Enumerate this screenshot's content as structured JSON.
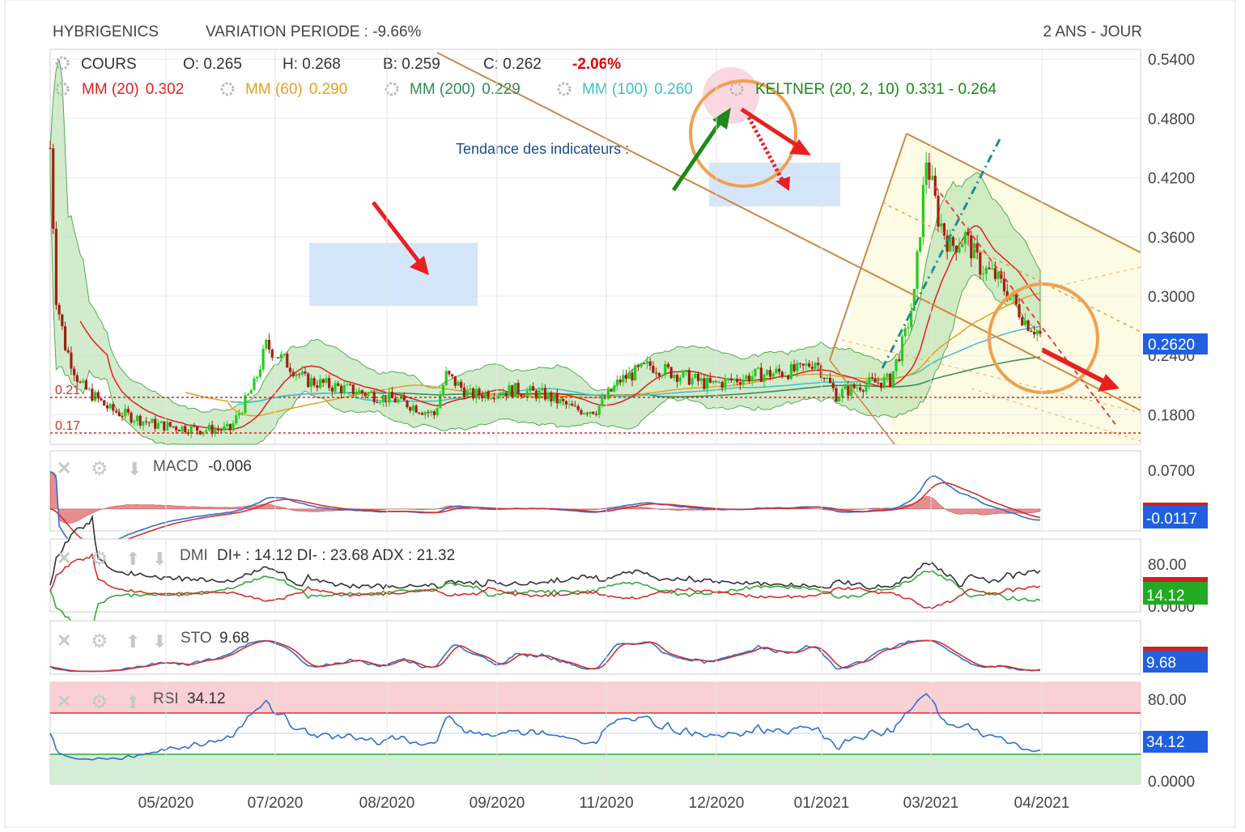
{
  "header": {
    "symbol": "HYBRIGENICS",
    "variation": "VARIATION PERIODE : -9.66%",
    "period": "2 ANS - JOUR"
  },
  "main_panel": {
    "legend_row1": [
      {
        "text": "COURS",
        "color": "#333333"
      },
      {
        "text": "O: 0.265",
        "color": "#333333"
      },
      {
        "text": "H: 0.268",
        "color": "#333333"
      },
      {
        "text": "B: 0.259",
        "color": "#333333"
      },
      {
        "text": "C: 0.262",
        "color": "#333333"
      },
      {
        "text": "-2.06%",
        "color": "#e00000"
      }
    ],
    "legend_row2": [
      {
        "name": "MM (20)",
        "value": "0.302",
        "color": "#e02020"
      },
      {
        "name": "MM (60)",
        "value": "0.290",
        "color": "#e8a020"
      },
      {
        "name": "MM (200)",
        "value": "0.229",
        "color": "#2e8b57"
      },
      {
        "name": "MM (100)",
        "value": "0.260",
        "color": "#40c0c8"
      },
      {
        "name": "KELTNER (20, 2, 10)",
        "value": "0.331 - 0.264",
        "color": "#1a8a1a"
      }
    ],
    "annotation": "Tendance des indicateurs :",
    "level_labels": [
      "0.21",
      "0.17"
    ],
    "current_price_label": "0.2620",
    "accent_colors": {
      "up_candle": "#22cc22",
      "down_candle": "#a02010",
      "band_fill": "#b8e0b0",
      "price_badge": "#2060e0",
      "channel": "#d08840",
      "circle": "#f0a050",
      "arrow_red": "#e82020",
      "arrow_green": "#1a8a1a"
    }
  },
  "sub_panels": {
    "macd": {
      "label": "MACD",
      "value": "-0.006",
      "axis_label": "0.0700",
      "badge": "-0.0117"
    },
    "dmi": {
      "label": "DMI",
      "value": "DI+ : 14.12 DI- : 23.68 ADX : 21.32",
      "axis_label": "80.00",
      "axis_label_2": "0.0000",
      "badge": "14.12"
    },
    "sto": {
      "label": "STO",
      "value": "9.68",
      "badge": "9.68"
    },
    "rsi": {
      "label": "RSI",
      "value": "34.12",
      "axis_label": "80.00",
      "axis_label_2": "0.0000",
      "badge": "34.12"
    }
  },
  "chart_data": {
    "type": "candlestick",
    "y_axis_labels": [
      "0.5400",
      "0.4800",
      "0.4200",
      "0.3600",
      "0.3000",
      "0.2400",
      "0.1800"
    ],
    "ylim": [
      0.15,
      0.55
    ],
    "x_axis_labels": [
      "05/2020",
      "07/2020",
      "08/2020",
      "09/2020",
      "11/2020",
      "12/2020",
      "01/2021",
      "03/2021",
      "04/2021"
    ],
    "close_trend": [
      {
        "x": 0,
        "y": 0.45
      },
      {
        "x": 2,
        "y": 0.3
      },
      {
        "x": 5,
        "y": 0.25
      },
      {
        "x": 10,
        "y": 0.21
      },
      {
        "x": 20,
        "y": 0.185
      },
      {
        "x": 35,
        "y": 0.17
      },
      {
        "x": 50,
        "y": 0.165
      },
      {
        "x": 60,
        "y": 0.165
      },
      {
        "x": 68,
        "y": 0.21
      },
      {
        "x": 72,
        "y": 0.25
      },
      {
        "x": 78,
        "y": 0.235
      },
      {
        "x": 85,
        "y": 0.215
      },
      {
        "x": 100,
        "y": 0.205
      },
      {
        "x": 115,
        "y": 0.195
      },
      {
        "x": 120,
        "y": 0.19
      },
      {
        "x": 128,
        "y": 0.18
      },
      {
        "x": 132,
        "y": 0.22
      },
      {
        "x": 140,
        "y": 0.2
      },
      {
        "x": 155,
        "y": 0.205
      },
      {
        "x": 165,
        "y": 0.2
      },
      {
        "x": 175,
        "y": 0.185
      },
      {
        "x": 182,
        "y": 0.185
      },
      {
        "x": 190,
        "y": 0.215
      },
      {
        "x": 200,
        "y": 0.23
      },
      {
        "x": 210,
        "y": 0.22
      },
      {
        "x": 220,
        "y": 0.21
      },
      {
        "x": 235,
        "y": 0.22
      },
      {
        "x": 250,
        "y": 0.225
      },
      {
        "x": 255,
        "y": 0.235
      },
      {
        "x": 262,
        "y": 0.2
      },
      {
        "x": 270,
        "y": 0.21
      },
      {
        "x": 280,
        "y": 0.215
      },
      {
        "x": 285,
        "y": 0.26
      },
      {
        "x": 288,
        "y": 0.3
      },
      {
        "x": 292,
        "y": 0.44
      },
      {
        "x": 296,
        "y": 0.38
      },
      {
        "x": 300,
        "y": 0.35
      },
      {
        "x": 305,
        "y": 0.36
      },
      {
        "x": 310,
        "y": 0.33
      },
      {
        "x": 315,
        "y": 0.32
      },
      {
        "x": 320,
        "y": 0.3
      },
      {
        "x": 325,
        "y": 0.275
      },
      {
        "x": 330,
        "y": 0.262
      }
    ],
    "current_close": 0.262,
    "support_levels": [
      0.21,
      0.17
    ]
  }
}
